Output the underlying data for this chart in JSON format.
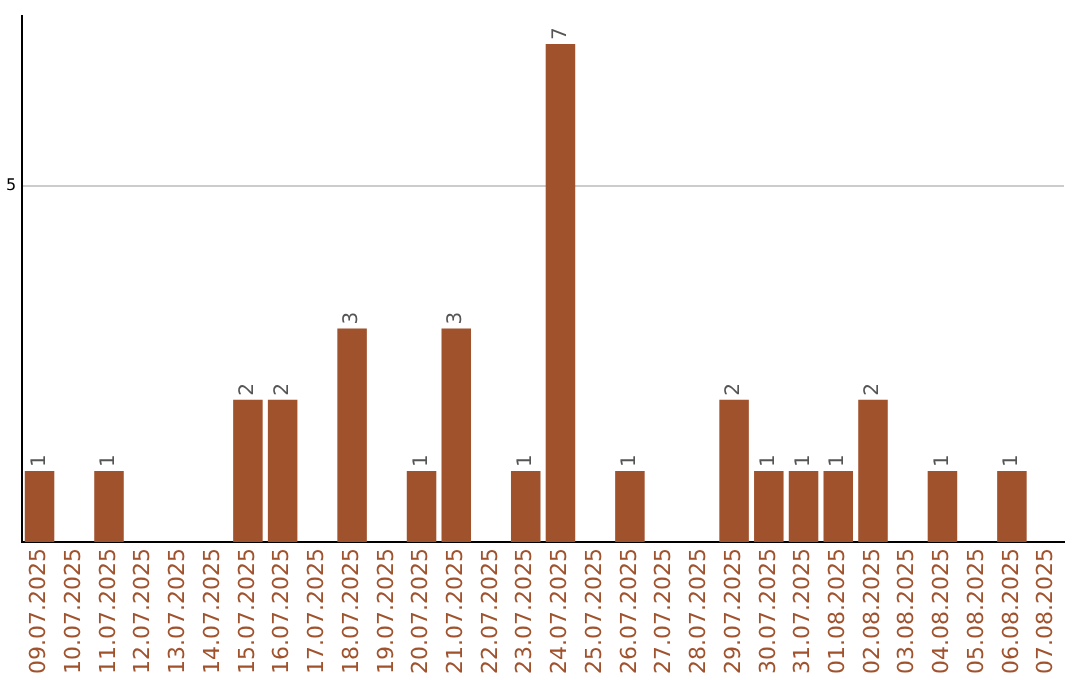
{
  "chart_data": {
    "type": "bar",
    "categories": [
      "09.07.2025",
      "10.07.2025",
      "11.07.2025",
      "12.07.2025",
      "13.07.2025",
      "14.07.2025",
      "15.07.2025",
      "16.07.2025",
      "17.07.2025",
      "18.07.2025",
      "19.07.2025",
      "20.07.2025",
      "21.07.2025",
      "22.07.2025",
      "23.07.2025",
      "24.07.2025",
      "25.07.2025",
      "26.07.2025",
      "27.07.2025",
      "28.07.2025",
      "29.07.2025",
      "30.07.2025",
      "31.07.2025",
      "01.08.2025",
      "02.08.2025",
      "03.08.2025",
      "04.08.2025",
      "05.08.2025",
      "06.08.2025",
      "07.08.2025"
    ],
    "values": [
      1,
      0,
      1,
      0,
      0,
      0,
      2,
      2,
      0,
      3,
      0,
      1,
      3,
      0,
      1,
      7,
      0,
      1,
      0,
      0,
      2,
      1,
      1,
      1,
      2,
      0,
      1,
      0,
      1,
      0
    ],
    "value_labels": [
      "1",
      null,
      "1",
      null,
      null,
      null,
      "2",
      "2",
      null,
      "3",
      null,
      "1",
      "3",
      null,
      "1",
      "7",
      null,
      "1",
      null,
      null,
      "2",
      "1",
      "1",
      "1",
      "2",
      null,
      "1",
      null,
      "1",
      null
    ],
    "color": "#a0522d",
    "ylim": [
      0,
      7.4
    ],
    "yticks": [
      5
    ],
    "grid": "y"
  }
}
